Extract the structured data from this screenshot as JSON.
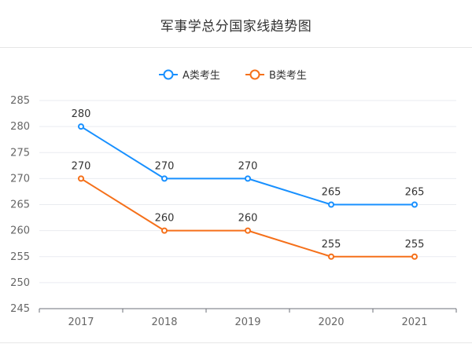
{
  "header": {
    "title": "军事学总分国家线趋势图"
  },
  "chart_data": {
    "type": "line",
    "title": "军事学总分国家线趋势图",
    "categories": [
      "2017",
      "2018",
      "2019",
      "2020",
      "2021"
    ],
    "series": [
      {
        "name": "A类考生",
        "values": [
          280,
          270,
          270,
          265,
          265
        ],
        "color": "#1890ff"
      },
      {
        "name": "B类考生",
        "values": [
          270,
          260,
          260,
          255,
          255
        ],
        "color": "#f5701a"
      }
    ],
    "ylim": [
      245,
      285
    ],
    "yticks": [
      245,
      250,
      255,
      260,
      265,
      270,
      275,
      280,
      285
    ],
    "grid": true,
    "legend": "top-center",
    "data_labels": true
  }
}
